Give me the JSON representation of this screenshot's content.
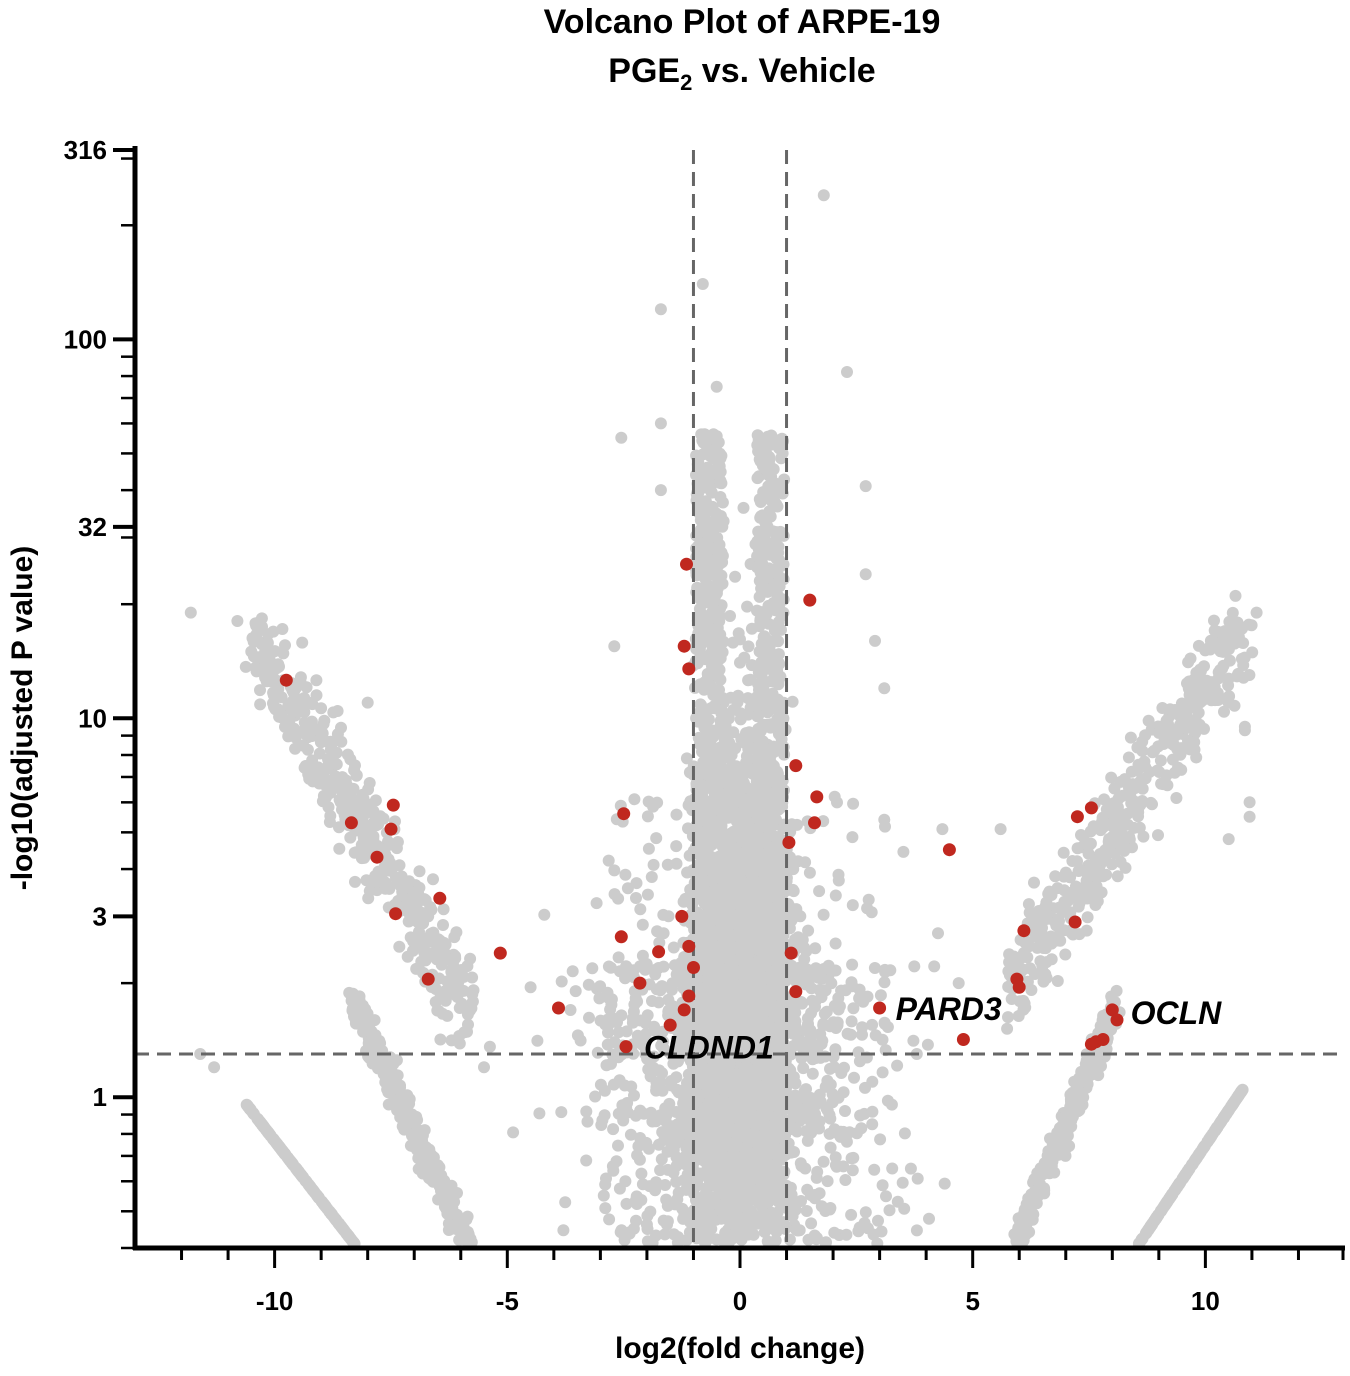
{
  "chart_data": {
    "type": "scatter",
    "title_line1": "Volcano Plot of ARPE-19",
    "title_line2_main": "PGE",
    "title_line2_sub": "2",
    "title_line2_rest": " vs. Vehicle",
    "xlabel": "log2(fold change)",
    "ylabel": "-log10(adjusted P value)",
    "x_axis": {
      "min": -13,
      "max": 13,
      "scale": "linear",
      "ticks": [
        -10,
        -5,
        0,
        5,
        10
      ],
      "tick_labels": [
        "-10",
        "-5",
        "0",
        "5",
        "10"
      ]
    },
    "y_axis": {
      "min": 0.4,
      "max": 316,
      "scale": "log",
      "ticks": [
        1,
        3,
        10,
        32,
        100,
        316
      ],
      "tick_labels": [
        "1",
        "3",
        "10",
        "32",
        "100",
        "316"
      ]
    },
    "grid": false,
    "colors": {
      "background_points": "#cccccc",
      "highlight_points": "#c0281f",
      "threshold_lines": "#666666",
      "axis": "#000000"
    },
    "thresholds": {
      "fold_change_lines_x": [
        -1,
        1
      ],
      "significance_line_y": 1.3
    },
    "highlighted_genes": [
      {
        "label": "CLDND1",
        "x": -2.45,
        "y": 1.36
      },
      {
        "label": "PARD3",
        "x": 3.0,
        "y": 1.72
      },
      {
        "label": "OCLN",
        "x": 8.05,
        "y": 1.6
      }
    ],
    "highlighted_points": [
      {
        "x": -9.75,
        "y": 12.6
      },
      {
        "x": -8.35,
        "y": 5.3
      },
      {
        "x": -7.45,
        "y": 5.9
      },
      {
        "x": -7.5,
        "y": 5.1
      },
      {
        "x": -7.8,
        "y": 4.3
      },
      {
        "x": -7.4,
        "y": 3.05
      },
      {
        "x": -6.45,
        "y": 3.35
      },
      {
        "x": -6.7,
        "y": 2.05
      },
      {
        "x": -5.15,
        "y": 2.4
      },
      {
        "x": -3.9,
        "y": 1.72
      },
      {
        "x": -2.5,
        "y": 5.6
      },
      {
        "x": -2.55,
        "y": 2.65
      },
      {
        "x": -2.45,
        "y": 1.36
      },
      {
        "x": -1.75,
        "y": 2.42
      },
      {
        "x": -2.15,
        "y": 2.0
      },
      {
        "x": -1.5,
        "y": 1.55
      },
      {
        "x": -1.15,
        "y": 25.5
      },
      {
        "x": -1.2,
        "y": 15.5
      },
      {
        "x": -1.1,
        "y": 13.5
      },
      {
        "x": -1.25,
        "y": 3.0
      },
      {
        "x": -1.1,
        "y": 2.5
      },
      {
        "x": -1.0,
        "y": 2.2
      },
      {
        "x": -1.1,
        "y": 1.85
      },
      {
        "x": -1.2,
        "y": 1.7
      },
      {
        "x": 1.5,
        "y": 20.5
      },
      {
        "x": 1.2,
        "y": 7.5
      },
      {
        "x": 1.65,
        "y": 6.2
      },
      {
        "x": 1.6,
        "y": 5.3
      },
      {
        "x": 1.05,
        "y": 4.7
      },
      {
        "x": 1.1,
        "y": 2.4
      },
      {
        "x": 1.2,
        "y": 1.9
      },
      {
        "x": 3.0,
        "y": 1.72
      },
      {
        "x": 4.5,
        "y": 4.5
      },
      {
        "x": 4.8,
        "y": 1.42
      },
      {
        "x": 5.95,
        "y": 2.05
      },
      {
        "x": 6.0,
        "y": 1.95
      },
      {
        "x": 6.1,
        "y": 2.75
      },
      {
        "x": 7.25,
        "y": 5.5
      },
      {
        "x": 7.55,
        "y": 5.8
      },
      {
        "x": 7.2,
        "y": 2.9
      },
      {
        "x": 7.55,
        "y": 1.38
      },
      {
        "x": 7.65,
        "y": 1.4
      },
      {
        "x": 7.8,
        "y": 1.42
      },
      {
        "x": 8.0,
        "y": 1.7
      },
      {
        "x": 8.1,
        "y": 1.6
      }
    ],
    "background_points_note_only": "dense gray cloud rendered procedurally"
  }
}
